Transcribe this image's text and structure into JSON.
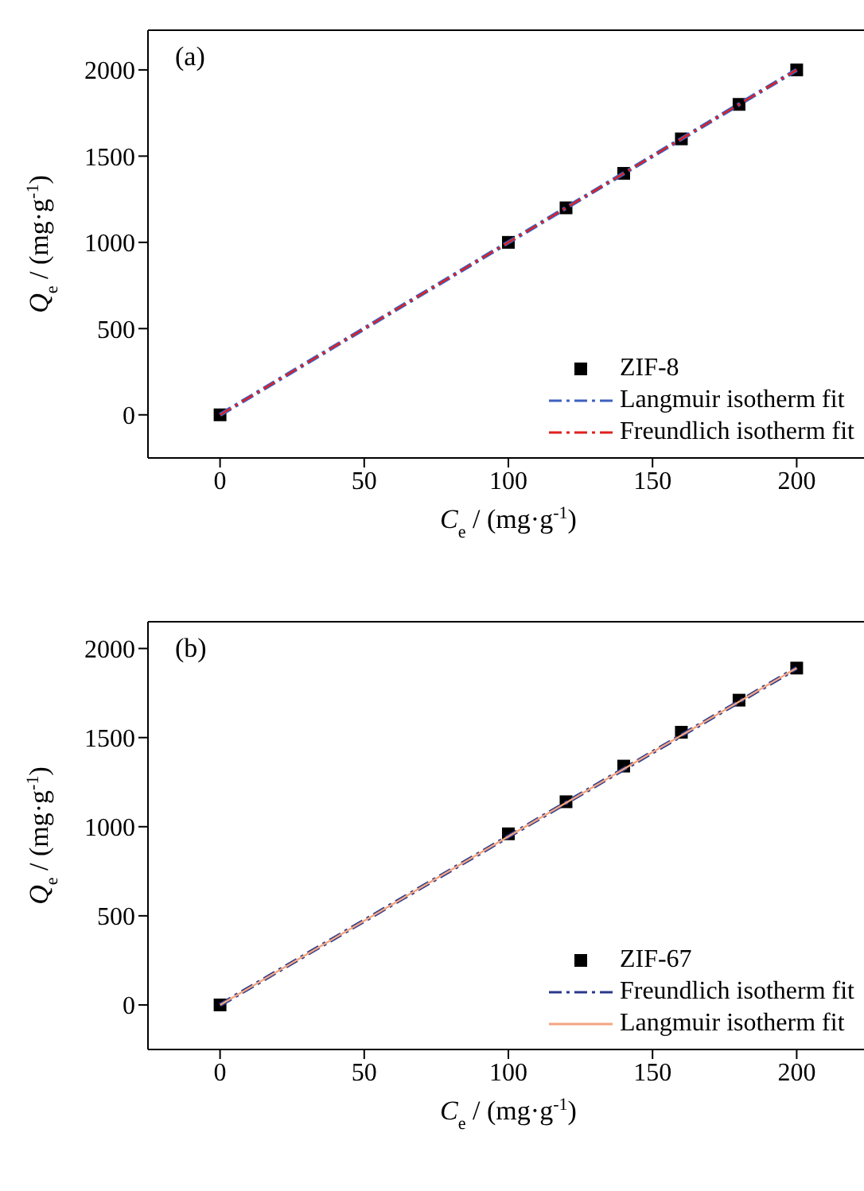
{
  "chart_data": [
    {
      "type": "scatter",
      "title": "(a)",
      "xlabel": "C$_{e}$ / (mg·g$^{-1}$)",
      "ylabel": "Q$_{e}$ / (mg·g$^{-1}$)",
      "xlim": [
        -25,
        225
      ],
      "xticks": [
        0,
        50,
        100,
        150,
        200
      ],
      "ylim": [
        -250,
        2230
      ],
      "yticks": [
        0,
        500,
        1000,
        1500,
        2000
      ],
      "legend": "bottom right",
      "series": [
        {
          "name": "ZIF-8",
          "marker": "square",
          "color": "#000000",
          "x": [
            0,
            100,
            120,
            140,
            160,
            180,
            200
          ],
          "values": [
            0,
            1000,
            1200,
            1400,
            1600,
            1800,
            2000
          ]
        },
        {
          "name": "Langmuir isotherm fit",
          "type": "line",
          "line_style": "dashed",
          "color": "#4060c0",
          "x": [
            0,
            200
          ],
          "values": [
            0,
            2000
          ]
        },
        {
          "name": "Freundlich isotherm fit",
          "type": "line",
          "line_style": "dashed",
          "color": "#e02020",
          "x": [
            0,
            200
          ],
          "values": [
            0,
            2000
          ]
        }
      ]
    },
    {
      "type": "scatter",
      "title": "(b)",
      "xlabel": "C$_{e}$ / (mg·g$^{-1}$)",
      "ylabel": "Q$_{e}$ / (mg·g$^{-1}$)",
      "xlim": [
        -25,
        225
      ],
      "xticks": [
        0,
        50,
        100,
        150,
        200
      ],
      "ylim": [
        -250,
        2150
      ],
      "yticks": [
        0,
        500,
        1000,
        1500,
        2000
      ],
      "legend": "bottom right",
      "series": [
        {
          "name": "ZIF-67",
          "marker": "square",
          "color": "#000000",
          "x": [
            0,
            100,
            120,
            140,
            160,
            180,
            200
          ],
          "values": [
            0,
            960,
            1140,
            1340,
            1530,
            1710,
            1890
          ]
        },
        {
          "name": "Freundlich isotherm fit",
          "type": "line",
          "line_style": "dashed",
          "color": "#2a3a8a",
          "x": [
            0,
            200
          ],
          "values": [
            0,
            1890
          ]
        },
        {
          "name": "Langmuir isotherm fit",
          "type": "line",
          "line_style": "solid",
          "color": "#f4a582",
          "x": [
            0,
            200
          ],
          "values": [
            0,
            1890
          ]
        }
      ]
    }
  ]
}
